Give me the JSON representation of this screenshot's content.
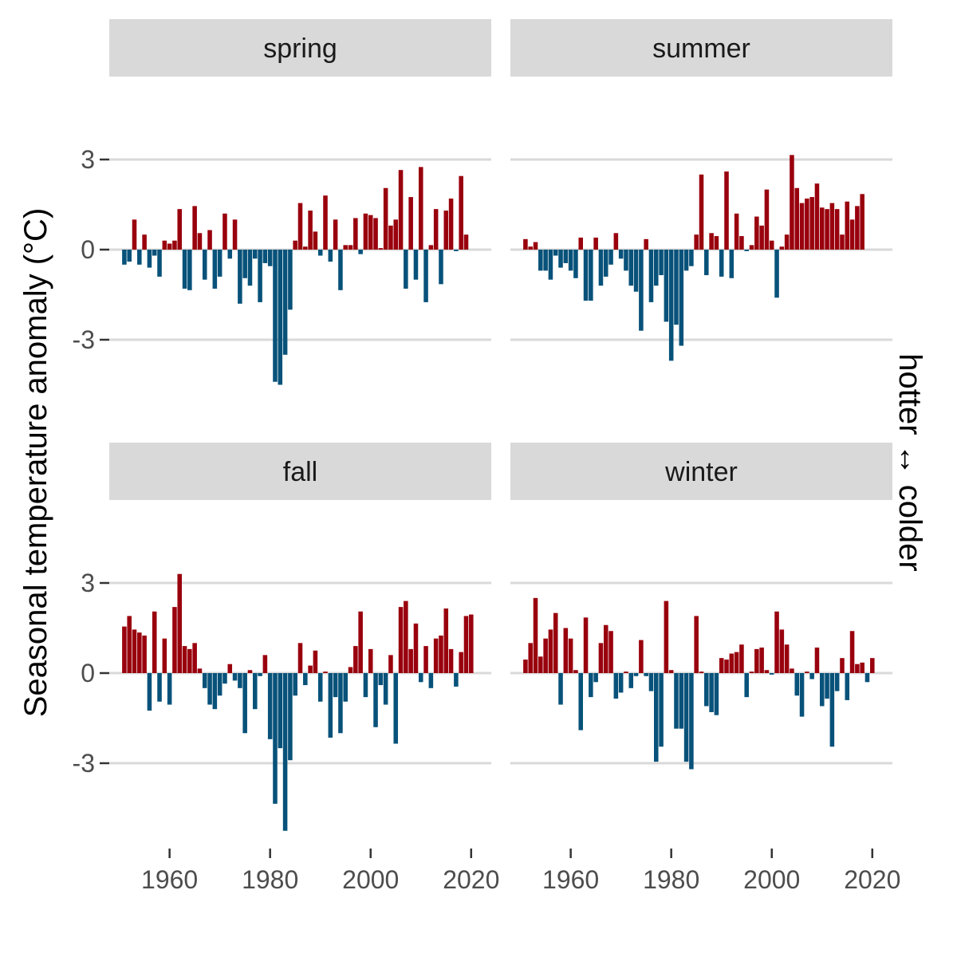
{
  "chart_data": {
    "type": "bar",
    "ylabel": "Seasonal temperature anomaly (°C)",
    "right_label": "hotter ↔ colder",
    "colors": {
      "positive": "#99000d",
      "negative": "#08527a",
      "strip": "#d9d9d9",
      "grid": "#d9d9d9"
    },
    "xlim": [
      1948,
      2024
    ],
    "ylim": [
      -5.6,
      3.5
    ],
    "y_ticks": [
      3,
      0,
      -3
    ],
    "y_tick_labels": [
      "3",
      "0",
      "-3"
    ],
    "x_ticks": [
      1960,
      1980,
      2000,
      2020
    ],
    "x_tick_labels": [
      "1960",
      "1980",
      "2000",
      "2020"
    ],
    "grid": true,
    "start_year": 1951,
    "panels": [
      {
        "title": "spring",
        "values": [
          -0.5,
          -0.4,
          1.0,
          -0.5,
          0.5,
          -0.6,
          -0.2,
          -0.9,
          0.3,
          0.2,
          0.3,
          1.35,
          -1.3,
          -1.35,
          1.45,
          0.55,
          -1.0,
          0.65,
          -1.3,
          -0.9,
          1.2,
          -0.3,
          1.0,
          -1.8,
          -0.95,
          -1.2,
          -0.3,
          -1.75,
          -0.45,
          -0.55,
          -4.4,
          -4.5,
          -3.5,
          -2.0,
          0.3,
          1.55,
          0.1,
          1.3,
          0.6,
          -0.2,
          1.8,
          -0.4,
          1.0,
          -1.35,
          0.15,
          0.15,
          1.05,
          -0.15,
          1.2,
          1.15,
          1.05,
          0.05,
          2.05,
          0.8,
          1.0,
          2.65,
          -1.3,
          1.75,
          -1.0,
          2.75,
          -1.75,
          0.15,
          1.35,
          -1.15,
          1.3,
          1.7,
          -0.05,
          2.45,
          0.5
        ]
      },
      {
        "title": "summer",
        "values": [
          0.35,
          0.1,
          0.25,
          -0.7,
          -0.7,
          -1.0,
          -0.2,
          -0.6,
          -0.45,
          -0.7,
          -0.95,
          0.4,
          -1.7,
          -1.7,
          0.4,
          -1.2,
          -0.9,
          -0.5,
          0.55,
          -0.3,
          -0.7,
          -1.2,
          -1.4,
          -2.7,
          0.35,
          -1.75,
          -1.2,
          -0.85,
          -2.4,
          -3.7,
          -2.5,
          -3.2,
          -0.7,
          -0.55,
          0.5,
          2.5,
          -0.85,
          0.55,
          0.45,
          -0.9,
          2.6,
          -0.95,
          1.2,
          0.45,
          -0.05,
          0.15,
          1.1,
          0.8,
          2.0,
          0.3,
          -1.6,
          0.1,
          0.5,
          3.15,
          2.05,
          1.55,
          1.7,
          1.75,
          2.2,
          1.4,
          1.35,
          1.55,
          1.35,
          0.5,
          1.6,
          1.0,
          1.45,
          1.85
        ]
      },
      {
        "title": "fall",
        "values": [
          1.55,
          1.9,
          1.45,
          1.35,
          1.25,
          -1.25,
          2.05,
          -0.95,
          1.15,
          -1.05,
          2.2,
          3.3,
          0.9,
          0.8,
          1.0,
          0.15,
          -0.5,
          -1.05,
          -1.2,
          -0.75,
          -0.35,
          0.3,
          -0.25,
          -0.5,
          -2.0,
          0.1,
          -1.2,
          -0.1,
          0.6,
          -2.2,
          -4.35,
          -2.5,
          -5.25,
          -2.9,
          -0.75,
          1.0,
          -0.4,
          0.25,
          0.75,
          -0.95,
          0.05,
          -2.15,
          -0.8,
          -2.0,
          -0.95,
          0.2,
          0.9,
          2.05,
          -0.8,
          0.8,
          -1.8,
          -0.4,
          -1.05,
          0.6,
          -2.35,
          2.2,
          2.4,
          0.8,
          1.65,
          -0.3,
          0.9,
          -0.5,
          1.15,
          1.25,
          2.15,
          0.8,
          -0.45,
          0.7,
          1.9,
          1.95
        ]
      },
      {
        "title": "winter",
        "values": [
          0.45,
          1.0,
          2.5,
          0.55,
          1.15,
          1.45,
          2.0,
          -1.05,
          1.5,
          1.15,
          0.1,
          -1.9,
          1.85,
          -0.8,
          -0.3,
          1.0,
          1.6,
          1.4,
          -0.85,
          -0.65,
          0.05,
          -0.5,
          -0.1,
          1.1,
          -0.1,
          -0.6,
          -2.95,
          -2.45,
          2.4,
          0.1,
          -1.85,
          -1.85,
          -2.95,
          -3.2,
          1.9,
          0.05,
          -1.1,
          -1.3,
          -1.4,
          0.5,
          0.45,
          0.65,
          0.7,
          0.95,
          -0.8,
          0.05,
          0.8,
          0.85,
          0.1,
          -0.05,
          2.05,
          1.45,
          0.95,
          0.15,
          -0.75,
          -1.45,
          0.05,
          -0.2,
          0.85,
          -1.1,
          -0.85,
          -2.45,
          -0.6,
          0.5,
          -0.9,
          1.4,
          0.3,
          0.35,
          -0.3,
          0.5
        ]
      }
    ]
  }
}
